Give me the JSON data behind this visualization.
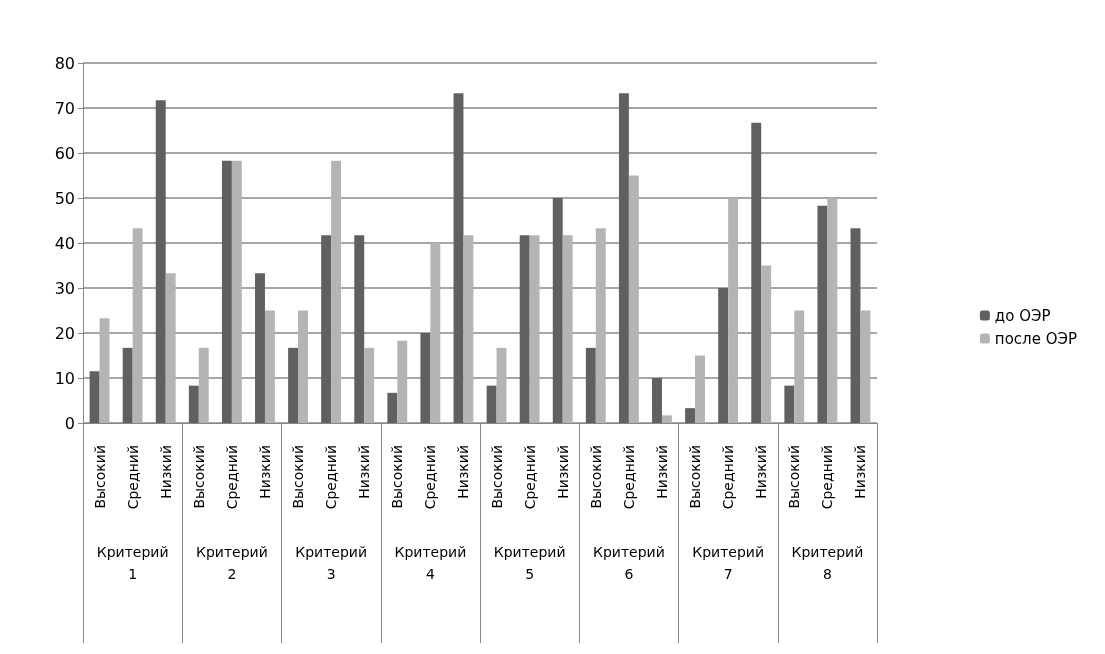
{
  "chart_data": {
    "type": "bar",
    "categories": [
      "Высокий",
      "Средний",
      "Низкий",
      "Высокий",
      "Средний",
      "Низкий",
      "Высокий",
      "Средний",
      "Низкий",
      "Высокий",
      "Средний",
      "Низкий",
      "Высокий",
      "Средний",
      "Низкий",
      "Высокий",
      "Средний",
      "Низкий",
      "Высокий",
      "Средний",
      "Низкий",
      "Высокий",
      "Средний",
      "Низкий"
    ],
    "series": [
      {
        "name": "до ОЭР",
        "color": "#606060",
        "values": [
          11.5,
          16.7,
          71.7,
          8.3,
          58.3,
          33.3,
          16.7,
          41.7,
          41.7,
          6.7,
          20,
          73.3,
          8.3,
          41.7,
          50,
          16.7,
          73.3,
          10,
          3.3,
          30,
          66.7,
          8.3,
          48.3,
          43.3
        ]
      },
      {
        "name": "после ОЭР",
        "color": "#b4b4b4",
        "values": [
          23.3,
          43.3,
          33.3,
          16.7,
          58.3,
          25,
          25,
          58.3,
          16.7,
          18.3,
          40,
          41.7,
          16.7,
          41.7,
          41.7,
          43.3,
          55,
          1.7,
          15,
          50,
          35,
          25,
          50,
          25
        ]
      }
    ],
    "annotations": [
      "Критерий 1",
      "Критерий 2",
      "Критерий 3",
      "Критерий 4",
      "Критерий 5",
      "Критерий 6",
      "Критерий 7",
      "Критерий 8"
    ],
    "ylim": [
      0,
      80
    ],
    "yticks": [
      0,
      10,
      20,
      30,
      40,
      50,
      60,
      70,
      80
    ],
    "grid": "y",
    "legend": "right"
  }
}
